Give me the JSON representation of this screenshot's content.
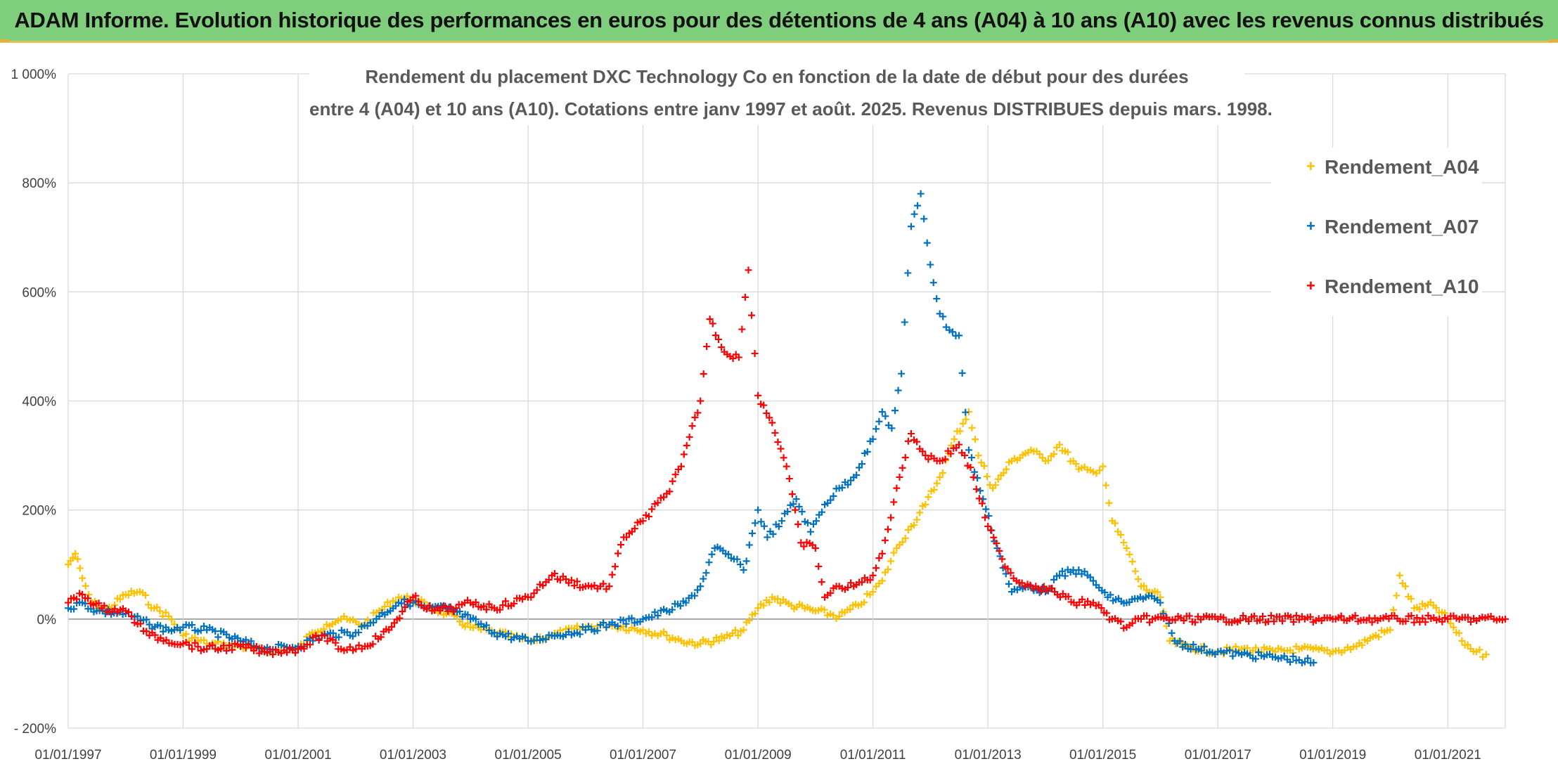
{
  "banner": {
    "title": "ADAM Informe. Evolution historique des performances en euros pour des détentions de 4 ans (A04) à 10 ans (A10) avec les revenus connus distribués"
  },
  "colors": {
    "banner_bg": "#7fce7c",
    "a04": "#ffc000",
    "a07": "#0070c0",
    "a10": "#ff0000",
    "grid": "#d9d9d9",
    "zero_line": "#a6a6a6"
  },
  "legend": {
    "placement": "top-right",
    "marker": "+",
    "items": [
      {
        "key": "a04",
        "label": "Rendement_A04"
      },
      {
        "key": "a07",
        "label": "Rendement_A07"
      },
      {
        "key": "a10",
        "label": "Rendement_A10"
      }
    ]
  },
  "chart_data": {
    "type": "scatter",
    "title": [
      "Rendement du placement DXC Technology Co en fonction de la date de début pour des durées",
      "entre 4 (A04) et 10 ans (A10). Cotations entre janv 1997 et août. 2025. Revenus DISTRIBUES depuis mars. 1998."
    ],
    "xlabel": "",
    "ylabel": "",
    "x_range": [
      "1997-01-01",
      "2022-01-01"
    ],
    "ylim": [
      -200,
      1000
    ],
    "y_ticks": [
      -200,
      0,
      200,
      400,
      600,
      800,
      1000
    ],
    "y_tick_labels": [
      "- 200%",
      "0%",
      "200%",
      "400%",
      "600%",
      "800%",
      "1 000%"
    ],
    "x_ticks": [
      "1997-01-01",
      "1999-01-01",
      "2001-01-01",
      "2003-01-01",
      "2005-01-01",
      "2007-01-01",
      "2009-01-01",
      "2011-01-01",
      "2013-01-01",
      "2015-01-01",
      "2017-01-01",
      "2019-01-01",
      "2021-01-01"
    ],
    "x_tick_labels": [
      "01/01/1997",
      "01/01/1999",
      "01/01/2001",
      "01/01/2003",
      "01/01/2005",
      "01/01/2007",
      "01/01/2009",
      "01/01/2011",
      "01/01/2013",
      "01/01/2015",
      "01/01/2017",
      "01/01/2019",
      "01/01/2021"
    ],
    "grid": true,
    "series": [
      {
        "name": "Rendement_A04",
        "key": "a04",
        "points": [
          [
            "1997-01-01",
            100
          ],
          [
            "1997-02-15",
            120
          ],
          [
            "1997-04-01",
            75
          ],
          [
            "1997-06-01",
            30
          ],
          [
            "1997-09-01",
            15
          ],
          [
            "1998-01-01",
            45
          ],
          [
            "1998-04-01",
            50
          ],
          [
            "1998-07-01",
            20
          ],
          [
            "1998-10-01",
            5
          ],
          [
            "1999-01-01",
            -30
          ],
          [
            "1999-06-01",
            -45
          ],
          [
            "2000-01-01",
            -50
          ],
          [
            "2000-06-01",
            -60
          ],
          [
            "2001-01-01",
            -55
          ],
          [
            "2001-04-01",
            -25
          ],
          [
            "2001-07-01",
            -10
          ],
          [
            "2001-10-01",
            0
          ],
          [
            "2002-03-01",
            -10
          ],
          [
            "2002-06-01",
            15
          ],
          [
            "2002-10-01",
            40
          ],
          [
            "2003-01-01",
            35
          ],
          [
            "2003-04-01",
            25
          ],
          [
            "2003-08-01",
            10
          ],
          [
            "2004-01-01",
            -15
          ],
          [
            "2004-06-01",
            -25
          ],
          [
            "2005-01-01",
            -40
          ],
          [
            "2005-06-01",
            -30
          ],
          [
            "2006-01-01",
            -15
          ],
          [
            "2006-06-01",
            -10
          ],
          [
            "2007-01-01",
            -20
          ],
          [
            "2007-06-01",
            -30
          ],
          [
            "2007-09-01",
            -40
          ],
          [
            "2008-01-01",
            -45
          ],
          [
            "2008-06-01",
            -35
          ],
          [
            "2008-10-01",
            -20
          ],
          [
            "2009-01-01",
            20
          ],
          [
            "2009-04-01",
            40
          ],
          [
            "2009-08-01",
            25
          ],
          [
            "2010-01-01",
            15
          ],
          [
            "2010-06-01",
            5
          ],
          [
            "2010-10-01",
            25
          ],
          [
            "2011-01-01",
            50
          ],
          [
            "2011-03-01",
            70
          ],
          [
            "2011-06-01",
            130
          ],
          [
            "2011-09-01",
            170
          ],
          [
            "2011-12-01",
            210
          ],
          [
            "2012-03-01",
            260
          ],
          [
            "2012-06-01",
            330
          ],
          [
            "2012-09-01",
            380
          ],
          [
            "2012-11-01",
            300
          ],
          [
            "2013-02-01",
            240
          ],
          [
            "2013-06-01",
            290
          ],
          [
            "2013-10-01",
            310
          ],
          [
            "2014-01-01",
            290
          ],
          [
            "2014-04-01",
            320
          ],
          [
            "2014-08-01",
            275
          ],
          [
            "2014-11-01",
            270
          ],
          [
            "2015-01-01",
            280
          ],
          [
            "2015-03-01",
            180
          ],
          [
            "2015-06-01",
            130
          ],
          [
            "2015-09-01",
            60
          ],
          [
            "2016-01-01",
            40
          ],
          [
            "2016-03-01",
            -40
          ],
          [
            "2016-06-01",
            -50
          ],
          [
            "2017-01-01",
            -60
          ],
          [
            "2017-06-01",
            -55
          ],
          [
            "2018-01-01",
            -60
          ],
          [
            "2018-06-01",
            -55
          ],
          [
            "2019-01-01",
            -60
          ],
          [
            "2019-06-01",
            -50
          ],
          [
            "2019-10-01",
            -30
          ],
          [
            "2020-01-01",
            -20
          ],
          [
            "2020-03-01",
            80
          ],
          [
            "2020-06-01",
            20
          ],
          [
            "2020-10-01",
            25
          ],
          [
            "2021-01-01",
            0
          ],
          [
            "2021-04-01",
            -40
          ],
          [
            "2021-07-01",
            -60
          ],
          [
            "2021-09-01",
            -65
          ]
        ]
      },
      {
        "name": "Rendement_A07",
        "key": "a07",
        "points": [
          [
            "1997-01-01",
            20
          ],
          [
            "1997-04-01",
            30
          ],
          [
            "1997-07-01",
            15
          ],
          [
            "1998-01-01",
            10
          ],
          [
            "1998-06-01",
            -10
          ],
          [
            "1998-10-01",
            -20
          ],
          [
            "1999-01-01",
            -15
          ],
          [
            "1999-06-01",
            -20
          ],
          [
            "2000-01-01",
            -40
          ],
          [
            "2000-06-01",
            -55
          ],
          [
            "2001-01-01",
            -50
          ],
          [
            "2001-06-01",
            -30
          ],
          [
            "2002-01-01",
            -25
          ],
          [
            "2002-06-01",
            5
          ],
          [
            "2002-10-01",
            30
          ],
          [
            "2003-01-01",
            30
          ],
          [
            "2003-04-01",
            20
          ],
          [
            "2003-08-01",
            20
          ],
          [
            "2004-01-01",
            0
          ],
          [
            "2004-06-01",
            -25
          ],
          [
            "2005-01-01",
            -40
          ],
          [
            "2005-06-01",
            -30
          ],
          [
            "2006-01-01",
            -20
          ],
          [
            "2006-06-01",
            -10
          ],
          [
            "2007-01-01",
            0
          ],
          [
            "2007-06-01",
            15
          ],
          [
            "2007-10-01",
            30
          ],
          [
            "2008-01-01",
            60
          ],
          [
            "2008-04-01",
            130
          ],
          [
            "2008-08-01",
            110
          ],
          [
            "2008-10-01",
            90
          ],
          [
            "2009-01-01",
            200
          ],
          [
            "2009-03-01",
            150
          ],
          [
            "2009-06-01",
            180
          ],
          [
            "2009-09-01",
            220
          ],
          [
            "2009-12-01",
            160
          ],
          [
            "2010-03-01",
            210
          ],
          [
            "2010-06-01",
            240
          ],
          [
            "2010-09-01",
            260
          ],
          [
            "2011-01-01",
            330
          ],
          [
            "2011-03-01",
            380
          ],
          [
            "2011-05-01",
            350
          ],
          [
            "2011-07-01",
            450
          ],
          [
            "2011-09-01",
            720
          ],
          [
            "2011-11-01",
            780
          ],
          [
            "2012-01-01",
            650
          ],
          [
            "2012-03-01",
            560
          ],
          [
            "2012-05-01",
            530
          ],
          [
            "2012-07-01",
            520
          ],
          [
            "2012-09-01",
            310
          ],
          [
            "2012-12-01",
            220
          ],
          [
            "2013-03-01",
            130
          ],
          [
            "2013-06-01",
            50
          ],
          [
            "2013-10-01",
            60
          ],
          [
            "2014-01-01",
            50
          ],
          [
            "2014-04-01",
            80
          ],
          [
            "2014-08-01",
            90
          ],
          [
            "2014-11-01",
            70
          ],
          [
            "2015-02-01",
            40
          ],
          [
            "2015-06-01",
            30
          ],
          [
            "2015-10-01",
            40
          ],
          [
            "2016-01-01",
            30
          ],
          [
            "2016-04-01",
            -40
          ],
          [
            "2016-09-01",
            -55
          ],
          [
            "2017-01-01",
            -60
          ],
          [
            "2017-06-01",
            -65
          ],
          [
            "2018-01-01",
            -70
          ],
          [
            "2018-06-01",
            -75
          ],
          [
            "2018-09-01",
            -80
          ]
        ]
      },
      {
        "name": "Rendement_A10",
        "key": "a10",
        "points": [
          [
            "1997-01-01",
            30
          ],
          [
            "1997-04-01",
            45
          ],
          [
            "1997-08-01",
            20
          ],
          [
            "1998-01-01",
            15
          ],
          [
            "1998-06-01",
            -30
          ],
          [
            "1999-01-01",
            -45
          ],
          [
            "1999-06-01",
            -55
          ],
          [
            "2000-01-01",
            -50
          ],
          [
            "2000-06-01",
            -60
          ],
          [
            "2001-01-01",
            -55
          ],
          [
            "2001-06-01",
            -30
          ],
          [
            "2001-10-01",
            -55
          ],
          [
            "2002-03-01",
            -50
          ],
          [
            "2002-08-01",
            -20
          ],
          [
            "2003-01-01",
            40
          ],
          [
            "2003-05-01",
            15
          ],
          [
            "2003-10-01",
            20
          ],
          [
            "2004-01-01",
            30
          ],
          [
            "2004-06-01",
            20
          ],
          [
            "2005-01-01",
            40
          ],
          [
            "2005-06-01",
            80
          ],
          [
            "2006-01-01",
            60
          ],
          [
            "2006-06-01",
            60
          ],
          [
            "2006-09-01",
            150
          ],
          [
            "2007-01-01",
            180
          ],
          [
            "2007-06-01",
            230
          ],
          [
            "2007-09-01",
            280
          ],
          [
            "2008-01-01",
            400
          ],
          [
            "2008-03-01",
            550
          ],
          [
            "2008-06-01",
            490
          ],
          [
            "2008-09-01",
            480
          ],
          [
            "2008-11-01",
            640
          ],
          [
            "2009-01-01",
            410
          ],
          [
            "2009-04-01",
            360
          ],
          [
            "2009-07-01",
            280
          ],
          [
            "2009-10-01",
            140
          ],
          [
            "2010-01-01",
            130
          ],
          [
            "2010-03-01",
            40
          ],
          [
            "2010-06-01",
            60
          ],
          [
            "2010-09-01",
            60
          ],
          [
            "2011-01-01",
            80
          ],
          [
            "2011-03-01",
            120
          ],
          [
            "2011-06-01",
            240
          ],
          [
            "2011-09-01",
            340
          ],
          [
            "2011-12-01",
            300
          ],
          [
            "2012-03-01",
            290
          ],
          [
            "2012-07-01",
            320
          ],
          [
            "2012-10-01",
            260
          ],
          [
            "2013-01-01",
            170
          ],
          [
            "2013-04-01",
            110
          ],
          [
            "2013-07-01",
            70
          ],
          [
            "2013-11-01",
            60
          ],
          [
            "2014-03-01",
            50
          ],
          [
            "2014-07-01",
            30
          ],
          [
            "2014-11-01",
            30
          ],
          [
            "2015-03-01",
            0
          ],
          [
            "2015-06-01",
            -15
          ],
          [
            "2015-09-01",
            0
          ],
          [
            "2017-01-01",
            0
          ],
          [
            "2019-01-01",
            0
          ],
          [
            "2021-01-01",
            0
          ],
          [
            "2022-01-01",
            0
          ]
        ]
      }
    ]
  }
}
